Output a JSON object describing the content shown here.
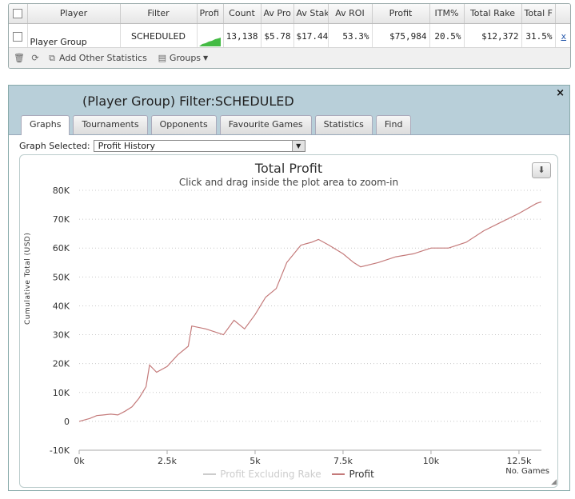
{
  "stats_table": {
    "headers": [
      "Player",
      "Filter",
      "Profi",
      "Count",
      "Av Pro",
      "Av Stak",
      "Av ROI",
      "Profit",
      "ITM%",
      "Total Rake",
      "Total F"
    ],
    "row": {
      "player": "Player Group",
      "filter": "SCHEDULED",
      "count": "13,138",
      "av_profit": "$5.78",
      "av_stake": "$17.44",
      "av_roi": "53.3%",
      "profit": "$75,984",
      "itm": "20.5%",
      "total_rake": "$12,372",
      "total_f": "31.5%",
      "remove": "x"
    },
    "toolbar": {
      "add_stats": "Add Other Statistics",
      "groups": "Groups"
    }
  },
  "graph_panel": {
    "title": "(Player Group) Filter:SCHEDULED",
    "close": "×",
    "tabs": [
      "Graphs",
      "Tournaments",
      "Opponents",
      "Favourite Games",
      "Statistics",
      "Find"
    ],
    "active_tab": "Graphs",
    "graph_selected_label": "Graph Selected:",
    "graph_selected_value": "Profit History"
  },
  "colors": {
    "profit_line": "#c47a7a",
    "excluding_rake_line": "#cccccc",
    "sparkline": "#44bb44",
    "header_bg": "#b8cfd9"
  },
  "chart_data": {
    "type": "line",
    "title": "Total Profit",
    "subtitle": "Click and drag inside the plot area to zoom-in",
    "xlabel": "No. Games",
    "ylabel": "Cumulative Total (USD)",
    "xlim": [
      0,
      13138
    ],
    "ylim": [
      -10000,
      80000
    ],
    "x_ticks": [
      0,
      2500,
      5000,
      7500,
      10000,
      12500
    ],
    "x_tick_labels": [
      "0k",
      "2.5k",
      "5k",
      "7.5k",
      "10k",
      "12.5k"
    ],
    "y_ticks": [
      -10000,
      0,
      10000,
      20000,
      30000,
      40000,
      50000,
      60000,
      70000,
      80000
    ],
    "y_tick_labels": [
      "-10K",
      "0",
      "10K",
      "20K",
      "30K",
      "40K",
      "50K",
      "60K",
      "70K",
      "80K"
    ],
    "grid": true,
    "legend": "bottom",
    "series": [
      {
        "name": "Profit Excluding Rake",
        "color": "#cccccc",
        "visible": false,
        "points": []
      },
      {
        "name": "Profit",
        "color": "#c47a7a",
        "visible": true,
        "points": [
          [
            0,
            0
          ],
          [
            300,
            1000
          ],
          [
            500,
            2000
          ],
          [
            900,
            2500
          ],
          [
            1100,
            2200
          ],
          [
            1300,
            3500
          ],
          [
            1500,
            5000
          ],
          [
            1700,
            8000
          ],
          [
            1900,
            12000
          ],
          [
            2000,
            19500
          ],
          [
            2200,
            17000
          ],
          [
            2500,
            19000
          ],
          [
            2800,
            23000
          ],
          [
            3100,
            26000
          ],
          [
            3200,
            33000
          ],
          [
            3600,
            32000
          ],
          [
            4100,
            30000
          ],
          [
            4400,
            35000
          ],
          [
            4700,
            32000
          ],
          [
            5000,
            37000
          ],
          [
            5300,
            43000
          ],
          [
            5600,
            46000
          ],
          [
            5900,
            55000
          ],
          [
            6300,
            61000
          ],
          [
            6600,
            62000
          ],
          [
            6800,
            63000
          ],
          [
            7100,
            61000
          ],
          [
            7500,
            58000
          ],
          [
            7800,
            55000
          ],
          [
            8000,
            53500
          ],
          [
            8500,
            55000
          ],
          [
            9000,
            57000
          ],
          [
            9500,
            58000
          ],
          [
            10000,
            60000
          ],
          [
            10500,
            60000
          ],
          [
            11000,
            62000
          ],
          [
            11500,
            66000
          ],
          [
            12000,
            69000
          ],
          [
            12500,
            72000
          ],
          [
            13000,
            75500
          ],
          [
            13138,
            76000
          ]
        ]
      }
    ]
  }
}
